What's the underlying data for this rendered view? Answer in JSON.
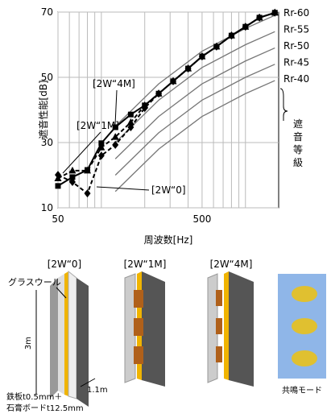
{
  "chart_data": {
    "type": "line",
    "xlabel": "周波数[Hz]",
    "ylabel": "遮音性能[dB]",
    "xlim": [
      50,
      1700
    ],
    "ylim": [
      10,
      70
    ],
    "log_x": true,
    "xticks": [
      50,
      500
    ],
    "minor_xticks": [
      60,
      70,
      80,
      90,
      100,
      200,
      300,
      400,
      600,
      700,
      800,
      900,
      1000
    ],
    "yticks": [
      10,
      30,
      50,
      70
    ],
    "grid": true,
    "x": [
      50,
      63,
      80,
      100,
      125,
      160,
      200,
      250,
      315,
      400,
      500,
      630,
      800,
      1000,
      1250,
      1600
    ],
    "series": [
      {
        "name": "[2W“4M]",
        "color": "#000000",
        "marker": "square",
        "dash": false,
        "values": [
          16.7,
          19.4,
          21.6,
          29.8,
          34.7,
          38.6,
          41.4,
          45,
          48.8,
          52.7,
          56.4,
          59.4,
          62.8,
          65.5,
          68.3,
          69.8
        ]
      },
      {
        "name": "[2W“1M]",
        "color": "#000000",
        "marker": "triangle",
        "dash": true,
        "values": [
          19,
          21.4,
          21.4,
          28.5,
          31.7,
          36.2,
          41.4,
          45,
          48.8,
          52.7,
          56.4,
          59.4,
          62.8,
          65.5,
          68.3,
          69.8
        ]
      },
      {
        "name": "[2W“0]",
        "color": "#000000",
        "marker": "diamond",
        "dash": true,
        "values": [
          20.1,
          17.9,
          14.4,
          26,
          29.3,
          34.7,
          40.6,
          45,
          48.8,
          52.7,
          56.4,
          59.4,
          62.8,
          65.5,
          68.3,
          69.8
        ]
      }
    ],
    "reference_curves": {
      "color": "#777777",
      "x": [
        125,
        250,
        500,
        1000,
        1600
      ],
      "curves": [
        {
          "name": "Rr-60",
          "values": [
            35,
            48,
            58,
            65,
            69
          ]
        },
        {
          "name": "Rr-55",
          "values": [
            30,
            43,
            53,
            60,
            64
          ]
        },
        {
          "name": "Rr-50",
          "values": [
            25,
            38,
            48,
            55,
            59
          ]
        },
        {
          "name": "Rr-45",
          "values": [
            20,
            33,
            43,
            50,
            54
          ]
        },
        {
          "name": "Rr-40",
          "values": [
            15,
            28,
            38,
            45,
            49
          ]
        }
      ],
      "group_label": "遮音等級"
    }
  },
  "diagram": {
    "panels": [
      "[2W“0]",
      "[2W“1M]",
      "[2W“4M]"
    ],
    "glass_wool": "グラスウール",
    "height": "3m",
    "width": "1.1m",
    "material_1": "鉄板t0.5mm＋",
    "material_2": "石膏ボードt12.5mm",
    "mode": "共鳴モード"
  }
}
